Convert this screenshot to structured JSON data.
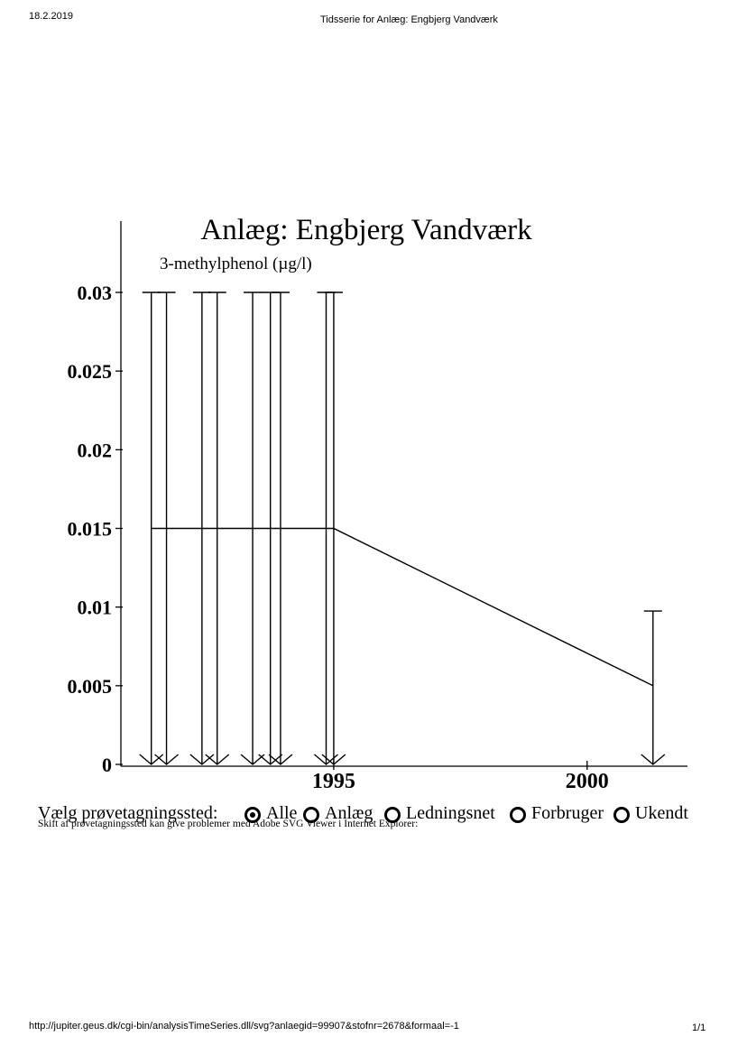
{
  "header": {
    "date": "18.2.2019",
    "title": "Tidsserie for Anlæg: Engbjerg Vandværk"
  },
  "footer": {
    "url": "http://jupiter.geus.dk/cgi-bin/analysisTimeSeries.dll/svg?anlaegid=99907&stofnr=2678&formaal=-1",
    "page": "1/1"
  },
  "chart_data": {
    "type": "line",
    "title": "Anlæg: Engbjerg Vandværk",
    "subtitle": "3-methylphenol (µg/l)",
    "ylim": [
      0,
      0.03
    ],
    "y_ticks": [
      0,
      0.005,
      0.01,
      0.015,
      0.02,
      0.025,
      0.03
    ],
    "y_tick_labels": [
      "0",
      "0.005",
      "0.01",
      "0.015",
      "0.02",
      "0.025",
      "0.03"
    ],
    "xlim": [
      1990.8,
      2001.98
    ],
    "x_ticks": [
      1995,
      2000
    ],
    "x_tick_labels": [
      "1995",
      "2000"
    ],
    "series": [
      {
        "points": [
          {
            "x": 1991.4,
            "y": 0.015,
            "upper": 0.03
          },
          {
            "x": 1991.7,
            "y": 0.015,
            "upper": 0.03
          },
          {
            "x": 1992.4,
            "y": 0.015,
            "upper": 0.03
          },
          {
            "x": 1992.7,
            "y": 0.015,
            "upper": 0.03
          },
          {
            "x": 1993.4,
            "y": 0.015,
            "upper": 0.03
          },
          {
            "x": 1993.75,
            "y": 0.015,
            "upper": 0.03
          },
          {
            "x": 1993.95,
            "y": 0.015,
            "upper": 0.03
          },
          {
            "x": 1994.85,
            "y": 0.015,
            "upper": 0.03
          },
          {
            "x": 1995.0,
            "y": 0.015,
            "upper": 0.03
          },
          {
            "x": 2001.3,
            "y": 0.005,
            "upper": 0.00975
          }
        ]
      }
    ],
    "grid": false,
    "legend": "none"
  },
  "controls": {
    "label": "Vælg prøvetagningssted:",
    "options": [
      {
        "label": "Alle",
        "selected": true
      },
      {
        "label": "Anlæg",
        "selected": false
      },
      {
        "label": "Ledningsnet",
        "selected": false
      },
      {
        "label": "Forbruger",
        "selected": false
      },
      {
        "label": "Ukendt",
        "selected": false
      }
    ],
    "note": "Skift af prøvetagningssted kan give problemer med Adobe SVG Viewer i Internet Explorer:"
  }
}
